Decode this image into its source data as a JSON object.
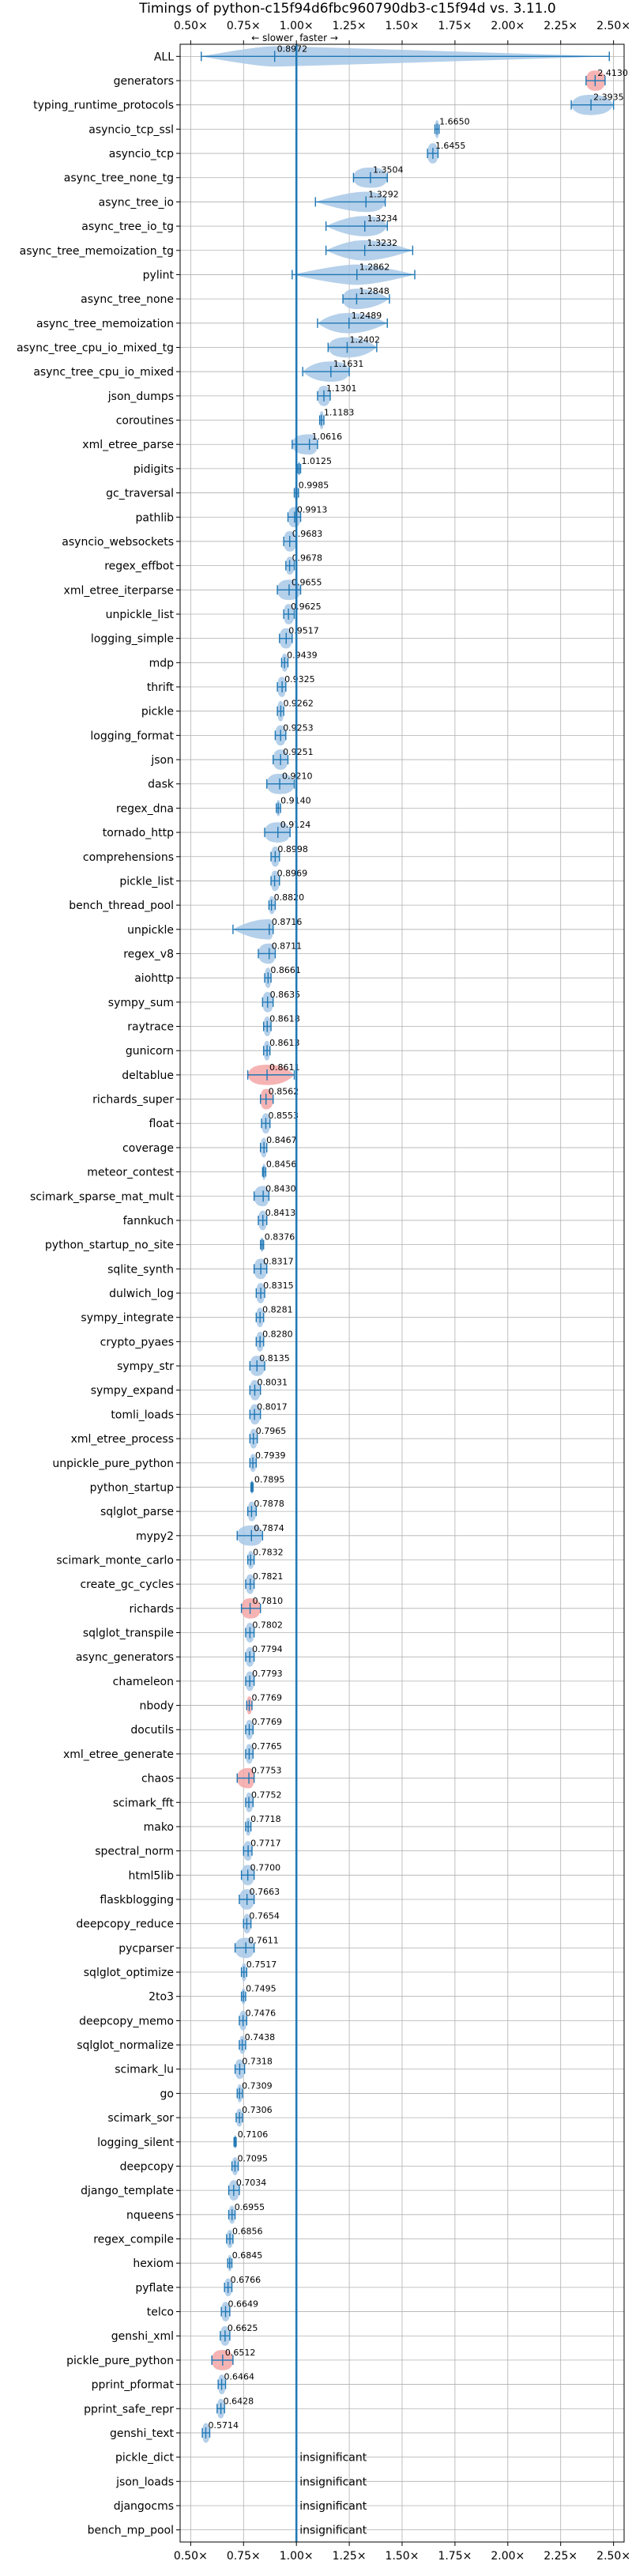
{
  "chart_data": {
    "type": "violin",
    "title": "Timings of python-c15f94d6fbc960790db3-c15f94d vs. 3.11.0",
    "xlabel": "",
    "ylabel": "",
    "xlim": [
      0.45,
      2.55
    ],
    "xticks": [
      0.5,
      0.75,
      1.0,
      1.25,
      1.5,
      1.75,
      2.0,
      2.25,
      2.5
    ],
    "xtick_labels": [
      "0.50×",
      "0.75×",
      "1.00×",
      "1.25×",
      "1.50×",
      "1.75×",
      "2.00×",
      "2.25×",
      "2.50×"
    ],
    "reference_line": 1.0,
    "direction_labels": {
      "slower": "← slower",
      "faster": "faster →"
    },
    "grid": true,
    "insignificant_label": "insignificant",
    "benchmarks": [
      {
        "name": "ALL",
        "label": "0.8972",
        "center": 0.8972,
        "lo": 0.55,
        "hi": 2.48,
        "spread": 0.1,
        "color": "blue"
      },
      {
        "name": "generators",
        "label": "2.4130",
        "center": 2.413,
        "lo": 2.37,
        "hi": 2.46,
        "spread": 0.04,
        "color": "red"
      },
      {
        "name": "typing_runtime_protocols",
        "label": "2.3935",
        "center": 2.3935,
        "lo": 2.3,
        "hi": 2.5,
        "spread": 0.05,
        "color": "blue"
      },
      {
        "name": "asyncio_tcp_ssl",
        "label": "1.6650",
        "center": 1.665,
        "lo": 1.655,
        "hi": 1.675,
        "spread": 0.01,
        "color": "blue"
      },
      {
        "name": "asyncio_tcp",
        "label": "1.6455",
        "center": 1.6455,
        "lo": 1.62,
        "hi": 1.67,
        "spread": 0.02,
        "color": "blue"
      },
      {
        "name": "async_tree_none_tg",
        "label": "1.3504",
        "center": 1.3504,
        "lo": 1.27,
        "hi": 1.43,
        "spread": 0.06,
        "color": "blue"
      },
      {
        "name": "async_tree_io",
        "label": "1.3292",
        "center": 1.3292,
        "lo": 1.09,
        "hi": 1.42,
        "spread": 0.06,
        "color": "blue"
      },
      {
        "name": "async_tree_io_tg",
        "label": "1.3234",
        "center": 1.3234,
        "lo": 1.14,
        "hi": 1.43,
        "spread": 0.07,
        "color": "blue"
      },
      {
        "name": "async_tree_memoization_tg",
        "label": "1.3232",
        "center": 1.3232,
        "lo": 1.14,
        "hi": 1.55,
        "spread": 0.08,
        "color": "blue"
      },
      {
        "name": "pylint",
        "label": "1.2862",
        "center": 1.2862,
        "lo": 0.98,
        "hi": 1.56,
        "spread": 0.1,
        "color": "blue"
      },
      {
        "name": "async_tree_none",
        "label": "1.2848",
        "center": 1.2848,
        "lo": 1.22,
        "hi": 1.44,
        "spread": 0.06,
        "color": "blue"
      },
      {
        "name": "async_tree_memoization",
        "label": "1.2489",
        "center": 1.2489,
        "lo": 1.1,
        "hi": 1.43,
        "spread": 0.08,
        "color": "blue"
      },
      {
        "name": "async_tree_cpu_io_mixed_tg",
        "label": "1.2402",
        "center": 1.2402,
        "lo": 1.15,
        "hi": 1.38,
        "spread": 0.07,
        "color": "blue"
      },
      {
        "name": "async_tree_cpu_io_mixed",
        "label": "1.1631",
        "center": 1.1631,
        "lo": 1.03,
        "hi": 1.25,
        "spread": 0.05,
        "color": "blue"
      },
      {
        "name": "json_dumps",
        "label": "1.1301",
        "center": 1.1301,
        "lo": 1.1,
        "hi": 1.16,
        "spread": 0.02,
        "color": "blue"
      },
      {
        "name": "coroutines",
        "label": "1.1183",
        "center": 1.1183,
        "lo": 1.11,
        "hi": 1.13,
        "spread": 0.01,
        "color": "blue"
      },
      {
        "name": "xml_etree_parse",
        "label": "1.0616",
        "center": 1.0616,
        "lo": 0.98,
        "hi": 1.1,
        "spread": 0.03,
        "color": "blue"
      },
      {
        "name": "pidigits",
        "label": "1.0125",
        "center": 1.0125,
        "lo": 1.005,
        "hi": 1.02,
        "spread": 0.005,
        "color": "blue"
      },
      {
        "name": "gc_traversal",
        "label": "0.9985",
        "center": 0.9985,
        "lo": 0.99,
        "hi": 1.01,
        "spread": 0.005,
        "color": "blue"
      },
      {
        "name": "pathlib",
        "label": "0.9913",
        "center": 0.9913,
        "lo": 0.96,
        "hi": 1.02,
        "spread": 0.02,
        "color": "blue"
      },
      {
        "name": "asyncio_websockets",
        "label": "0.9683",
        "center": 0.9683,
        "lo": 0.94,
        "hi": 1.0,
        "spread": 0.02,
        "color": "blue"
      },
      {
        "name": "regex_effbot",
        "label": "0.9678",
        "center": 0.9678,
        "lo": 0.95,
        "hi": 0.99,
        "spread": 0.01,
        "color": "blue"
      },
      {
        "name": "xml_etree_iterparse",
        "label": "0.9655",
        "center": 0.9655,
        "lo": 0.91,
        "hi": 1.02,
        "spread": 0.03,
        "color": "blue"
      },
      {
        "name": "unpickle_list",
        "label": "0.9625",
        "center": 0.9625,
        "lo": 0.94,
        "hi": 0.99,
        "spread": 0.02,
        "color": "blue"
      },
      {
        "name": "logging_simple",
        "label": "0.9517",
        "center": 0.9517,
        "lo": 0.92,
        "hi": 0.98,
        "spread": 0.02,
        "color": "blue"
      },
      {
        "name": "mdp",
        "label": "0.9439",
        "center": 0.9439,
        "lo": 0.93,
        "hi": 0.96,
        "spread": 0.01,
        "color": "blue"
      },
      {
        "name": "thrift",
        "label": "0.9325",
        "center": 0.9325,
        "lo": 0.91,
        "hi": 0.95,
        "spread": 0.015,
        "color": "blue"
      },
      {
        "name": "pickle",
        "label": "0.9262",
        "center": 0.9262,
        "lo": 0.91,
        "hi": 0.94,
        "spread": 0.015,
        "color": "blue"
      },
      {
        "name": "logging_format",
        "label": "0.9253",
        "center": 0.9253,
        "lo": 0.9,
        "hi": 0.95,
        "spread": 0.02,
        "color": "blue"
      },
      {
        "name": "json",
        "label": "0.9251",
        "center": 0.9251,
        "lo": 0.89,
        "hi": 0.96,
        "spread": 0.02,
        "color": "blue"
      },
      {
        "name": "dask",
        "label": "0.9210",
        "center": 0.921,
        "lo": 0.86,
        "hi": 0.99,
        "spread": 0.03,
        "color": "blue"
      },
      {
        "name": "regex_dna",
        "label": "0.9140",
        "center": 0.914,
        "lo": 0.905,
        "hi": 0.925,
        "spread": 0.008,
        "color": "blue"
      },
      {
        "name": "tornado_http",
        "label": "0.9124",
        "center": 0.9124,
        "lo": 0.85,
        "hi": 0.97,
        "spread": 0.03,
        "color": "blue"
      },
      {
        "name": "comprehensions",
        "label": "0.8998",
        "center": 0.8998,
        "lo": 0.88,
        "hi": 0.92,
        "spread": 0.015,
        "color": "blue"
      },
      {
        "name": "pickle_list",
        "label": "0.8969",
        "center": 0.8969,
        "lo": 0.88,
        "hi": 0.92,
        "spread": 0.015,
        "color": "blue"
      },
      {
        "name": "bench_thread_pool",
        "label": "0.8820",
        "center": 0.882,
        "lo": 0.87,
        "hi": 0.9,
        "spread": 0.01,
        "color": "blue"
      },
      {
        "name": "unpickle",
        "label": "0.8716",
        "center": 0.8716,
        "lo": 0.7,
        "hi": 0.89,
        "spread": 0.02,
        "color": "blue"
      },
      {
        "name": "regex_v8",
        "label": "0.8711",
        "center": 0.8711,
        "lo": 0.82,
        "hi": 0.9,
        "spread": 0.015,
        "color": "blue"
      },
      {
        "name": "aiohttp",
        "label": "0.8661",
        "center": 0.8661,
        "lo": 0.85,
        "hi": 0.88,
        "spread": 0.015,
        "color": "blue"
      },
      {
        "name": "sympy_sum",
        "label": "0.8635",
        "center": 0.8635,
        "lo": 0.84,
        "hi": 0.89,
        "spread": 0.015,
        "color": "blue"
      },
      {
        "name": "raytrace",
        "label": "0.8618",
        "center": 0.8618,
        "lo": 0.845,
        "hi": 0.88,
        "spread": 0.012,
        "color": "blue"
      },
      {
        "name": "gunicorn",
        "label": "0.8613",
        "center": 0.8613,
        "lo": 0.845,
        "hi": 0.875,
        "spread": 0.012,
        "color": "blue"
      },
      {
        "name": "deltablue",
        "label": "0.8611",
        "center": 0.8611,
        "lo": 0.77,
        "hi": 0.99,
        "spread": 0.05,
        "color": "red"
      },
      {
        "name": "richards_super",
        "label": "0.8562",
        "center": 0.8562,
        "lo": 0.83,
        "hi": 0.89,
        "spread": 0.02,
        "color": "red"
      },
      {
        "name": "float",
        "label": "0.8553",
        "center": 0.8553,
        "lo": 0.835,
        "hi": 0.875,
        "spread": 0.015,
        "color": "blue"
      },
      {
        "name": "coverage",
        "label": "0.8467",
        "center": 0.8467,
        "lo": 0.83,
        "hi": 0.86,
        "spread": 0.012,
        "color": "blue"
      },
      {
        "name": "meteor_contest",
        "label": "0.8456",
        "center": 0.8456,
        "lo": 0.84,
        "hi": 0.855,
        "spread": 0.008,
        "color": "blue"
      },
      {
        "name": "scimark_sparse_mat_mult",
        "label": "0.8430",
        "center": 0.843,
        "lo": 0.8,
        "hi": 0.87,
        "spread": 0.015,
        "color": "blue"
      },
      {
        "name": "fannkuch",
        "label": "0.8413",
        "center": 0.8413,
        "lo": 0.82,
        "hi": 0.86,
        "spread": 0.012,
        "color": "blue"
      },
      {
        "name": "python_startup_no_site",
        "label": "0.8376",
        "center": 0.8376,
        "lo": 0.83,
        "hi": 0.845,
        "spread": 0.006,
        "color": "blue"
      },
      {
        "name": "sqlite_synth",
        "label": "0.8317",
        "center": 0.8317,
        "lo": 0.8,
        "hi": 0.86,
        "spread": 0.02,
        "color": "blue"
      },
      {
        "name": "dulwich_log",
        "label": "0.8315",
        "center": 0.8315,
        "lo": 0.81,
        "hi": 0.85,
        "spread": 0.015,
        "color": "blue"
      },
      {
        "name": "sympy_integrate",
        "label": "0.8281",
        "center": 0.8281,
        "lo": 0.81,
        "hi": 0.845,
        "spread": 0.012,
        "color": "blue"
      },
      {
        "name": "crypto_pyaes",
        "label": "0.8280",
        "center": 0.828,
        "lo": 0.81,
        "hi": 0.845,
        "spread": 0.012,
        "color": "blue"
      },
      {
        "name": "sympy_str",
        "label": "0.8135",
        "center": 0.8135,
        "lo": 0.78,
        "hi": 0.85,
        "spread": 0.02,
        "color": "blue"
      },
      {
        "name": "sympy_expand",
        "label": "0.8031",
        "center": 0.8031,
        "lo": 0.78,
        "hi": 0.83,
        "spread": 0.015,
        "color": "blue"
      },
      {
        "name": "tomli_loads",
        "label": "0.8017",
        "center": 0.8017,
        "lo": 0.78,
        "hi": 0.83,
        "spread": 0.015,
        "color": "blue"
      },
      {
        "name": "xml_etree_process",
        "label": "0.7965",
        "center": 0.7965,
        "lo": 0.78,
        "hi": 0.815,
        "spread": 0.012,
        "color": "blue"
      },
      {
        "name": "unpickle_pure_python",
        "label": "0.7939",
        "center": 0.7939,
        "lo": 0.78,
        "hi": 0.81,
        "spread": 0.01,
        "color": "blue"
      },
      {
        "name": "python_startup",
        "label": "0.7895",
        "center": 0.7895,
        "lo": 0.785,
        "hi": 0.795,
        "spread": 0.005,
        "color": "blue"
      },
      {
        "name": "sqlglot_parse",
        "label": "0.7878",
        "center": 0.7878,
        "lo": 0.77,
        "hi": 0.81,
        "spread": 0.012,
        "color": "blue"
      },
      {
        "name": "mypy2",
        "label": "0.7874",
        "center": 0.7874,
        "lo": 0.72,
        "hi": 0.84,
        "spread": 0.03,
        "color": "blue"
      },
      {
        "name": "scimark_monte_carlo",
        "label": "0.7832",
        "center": 0.7832,
        "lo": 0.77,
        "hi": 0.8,
        "spread": 0.01,
        "color": "blue"
      },
      {
        "name": "create_gc_cycles",
        "label": "0.7821",
        "center": 0.7821,
        "lo": 0.76,
        "hi": 0.8,
        "spread": 0.012,
        "color": "blue"
      },
      {
        "name": "richards",
        "label": "0.7810",
        "center": 0.781,
        "lo": 0.74,
        "hi": 0.83,
        "spread": 0.025,
        "color": "red"
      },
      {
        "name": "sqlglot_transpile",
        "label": "0.7802",
        "center": 0.7802,
        "lo": 0.76,
        "hi": 0.8,
        "spread": 0.012,
        "color": "blue"
      },
      {
        "name": "async_generators",
        "label": "0.7794",
        "center": 0.7794,
        "lo": 0.76,
        "hi": 0.8,
        "spread": 0.012,
        "color": "blue"
      },
      {
        "name": "chameleon",
        "label": "0.7793",
        "center": 0.7793,
        "lo": 0.76,
        "hi": 0.8,
        "spread": 0.012,
        "color": "blue"
      },
      {
        "name": "nbody",
        "label": "0.7769",
        "center": 0.7769,
        "lo": 0.765,
        "hi": 0.79,
        "spread": 0.01,
        "color": "red"
      },
      {
        "name": "docutils",
        "label": "0.7769",
        "center": 0.7769,
        "lo": 0.76,
        "hi": 0.795,
        "spread": 0.012,
        "color": "blue"
      },
      {
        "name": "xml_etree_generate",
        "label": "0.7765",
        "center": 0.7765,
        "lo": 0.76,
        "hi": 0.795,
        "spread": 0.012,
        "color": "blue"
      },
      {
        "name": "chaos",
        "label": "0.7753",
        "center": 0.7753,
        "lo": 0.72,
        "hi": 0.8,
        "spread": 0.02,
        "color": "red"
      },
      {
        "name": "scimark_fft",
        "label": "0.7752",
        "center": 0.7752,
        "lo": 0.76,
        "hi": 0.795,
        "spread": 0.012,
        "color": "blue"
      },
      {
        "name": "mako",
        "label": "0.7718",
        "center": 0.7718,
        "lo": 0.76,
        "hi": 0.785,
        "spread": 0.01,
        "color": "blue"
      },
      {
        "name": "spectral_norm",
        "label": "0.7717",
        "center": 0.7717,
        "lo": 0.75,
        "hi": 0.79,
        "spread": 0.012,
        "color": "blue"
      },
      {
        "name": "html5lib",
        "label": "0.7700",
        "center": 0.77,
        "lo": 0.74,
        "hi": 0.8,
        "spread": 0.02,
        "color": "blue"
      },
      {
        "name": "flaskblogging",
        "label": "0.7663",
        "center": 0.7663,
        "lo": 0.73,
        "hi": 0.8,
        "spread": 0.02,
        "color": "blue"
      },
      {
        "name": "deepcopy_reduce",
        "label": "0.7654",
        "center": 0.7654,
        "lo": 0.75,
        "hi": 0.785,
        "spread": 0.012,
        "color": "blue"
      },
      {
        "name": "pycparser",
        "label": "0.7611",
        "center": 0.7611,
        "lo": 0.71,
        "hi": 0.8,
        "spread": 0.03,
        "color": "blue"
      },
      {
        "name": "sqlglot_optimize",
        "label": "0.7517",
        "center": 0.7517,
        "lo": 0.74,
        "hi": 0.765,
        "spread": 0.01,
        "color": "blue"
      },
      {
        "name": "2to3",
        "label": "0.7495",
        "center": 0.7495,
        "lo": 0.74,
        "hi": 0.76,
        "spread": 0.008,
        "color": "blue"
      },
      {
        "name": "deepcopy_memo",
        "label": "0.7476",
        "center": 0.7476,
        "lo": 0.73,
        "hi": 0.765,
        "spread": 0.012,
        "color": "blue"
      },
      {
        "name": "sqlglot_normalize",
        "label": "0.7438",
        "center": 0.7438,
        "lo": 0.73,
        "hi": 0.76,
        "spread": 0.01,
        "color": "blue"
      },
      {
        "name": "scimark_lu",
        "label": "0.7318",
        "center": 0.7318,
        "lo": 0.71,
        "hi": 0.755,
        "spread": 0.012,
        "color": "blue"
      },
      {
        "name": "go",
        "label": "0.7309",
        "center": 0.7309,
        "lo": 0.72,
        "hi": 0.745,
        "spread": 0.01,
        "color": "blue"
      },
      {
        "name": "scimark_sor",
        "label": "0.7306",
        "center": 0.7306,
        "lo": 0.715,
        "hi": 0.745,
        "spread": 0.01,
        "color": "blue"
      },
      {
        "name": "logging_silent",
        "label": "0.7106",
        "center": 0.7106,
        "lo": 0.705,
        "hi": 0.715,
        "spread": 0.005,
        "color": "blue"
      },
      {
        "name": "deepcopy",
        "label": "0.7095",
        "center": 0.7095,
        "lo": 0.695,
        "hi": 0.725,
        "spread": 0.01,
        "color": "blue"
      },
      {
        "name": "django_template",
        "label": "0.7034",
        "center": 0.7034,
        "lo": 0.68,
        "hi": 0.73,
        "spread": 0.015,
        "color": "blue"
      },
      {
        "name": "nqueens",
        "label": "0.6955",
        "center": 0.6955,
        "lo": 0.68,
        "hi": 0.71,
        "spread": 0.01,
        "color": "blue"
      },
      {
        "name": "regex_compile",
        "label": "0.6856",
        "center": 0.6856,
        "lo": 0.67,
        "hi": 0.7,
        "spread": 0.01,
        "color": "blue"
      },
      {
        "name": "hexiom",
        "label": "0.6845",
        "center": 0.6845,
        "lo": 0.675,
        "hi": 0.695,
        "spread": 0.008,
        "color": "blue"
      },
      {
        "name": "pyflate",
        "label": "0.6766",
        "center": 0.6766,
        "lo": 0.66,
        "hi": 0.695,
        "spread": 0.01,
        "color": "blue"
      },
      {
        "name": "telco",
        "label": "0.6649",
        "center": 0.6649,
        "lo": 0.645,
        "hi": 0.685,
        "spread": 0.012,
        "color": "blue"
      },
      {
        "name": "genshi_xml",
        "label": "0.6625",
        "center": 0.6625,
        "lo": 0.64,
        "hi": 0.685,
        "spread": 0.012,
        "color": "blue"
      },
      {
        "name": "pickle_pure_python",
        "label": "0.6512",
        "center": 0.6512,
        "lo": 0.6,
        "hi": 0.7,
        "spread": 0.03,
        "color": "red"
      },
      {
        "name": "pprint_pformat",
        "label": "0.6464",
        "center": 0.6464,
        "lo": 0.63,
        "hi": 0.665,
        "spread": 0.012,
        "color": "blue"
      },
      {
        "name": "pprint_safe_repr",
        "label": "0.6428",
        "center": 0.6428,
        "lo": 0.625,
        "hi": 0.66,
        "spread": 0.012,
        "color": "blue"
      },
      {
        "name": "genshi_text",
        "label": "0.5714",
        "center": 0.5714,
        "lo": 0.555,
        "hi": 0.59,
        "spread": 0.012,
        "color": "blue"
      },
      {
        "name": "pickle_dict",
        "insignificant": true
      },
      {
        "name": "json_loads",
        "insignificant": true
      },
      {
        "name": "djangocms",
        "insignificant": true
      },
      {
        "name": "bench_mp_pool",
        "insignificant": true
      }
    ]
  }
}
